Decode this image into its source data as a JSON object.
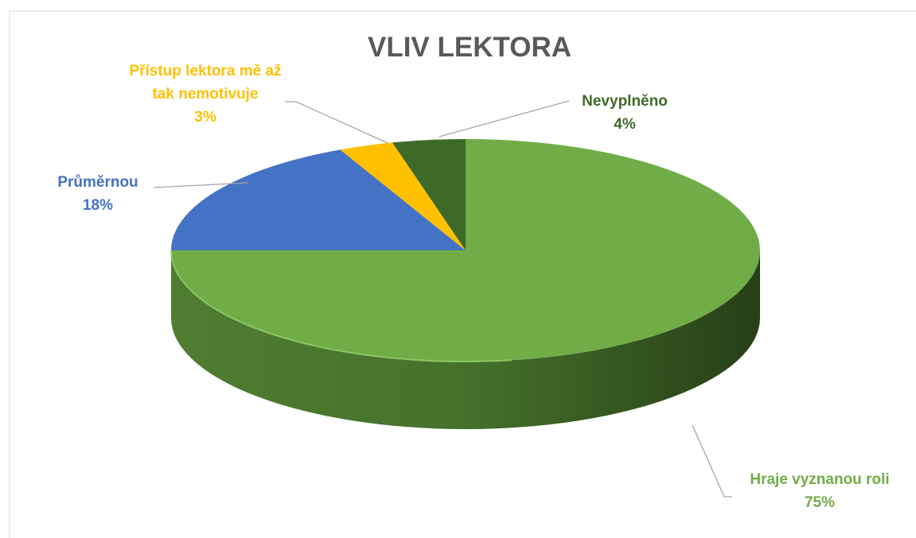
{
  "chart_data": {
    "type": "pie3d",
    "title": "VLIV LEKTORA",
    "categories": [
      "Hraje vyznanou roli",
      "Průměrnou",
      "Přístup lektora mě až tak nemotivuje",
      "Nevyplněno"
    ],
    "values": [
      75,
      18,
      3,
      4
    ],
    "value_labels": [
      "75%",
      "18%",
      "3%",
      "4%"
    ],
    "colors": [
      "#70ad47",
      "#4472c4",
      "#ffc000",
      "#3e6a28"
    ]
  }
}
